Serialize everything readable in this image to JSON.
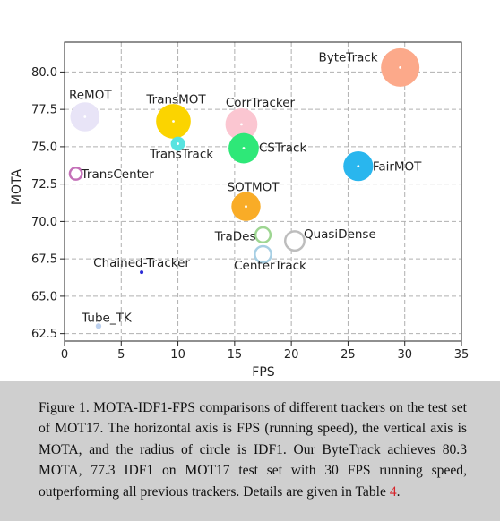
{
  "chart_data": {
    "type": "scatter",
    "xlabel": "FPS",
    "ylabel": "MOTA",
    "xlim": [
      0,
      35
    ],
    "ylim": [
      62,
      82
    ],
    "xticks": [
      0,
      5,
      10,
      15,
      20,
      25,
      30,
      35
    ],
    "yticks": [
      62.5,
      65.0,
      67.5,
      70.0,
      72.5,
      75.0,
      77.5,
      80.0
    ],
    "ytick_labels": [
      "62.5",
      "65.0",
      "67.5",
      "70.0",
      "72.5",
      "75.0",
      "77.5",
      "80.0"
    ],
    "grid": true,
    "size_encoding": "IDF1",
    "points": [
      {
        "label": "ByteTrack",
        "fps": 29.6,
        "mota": 80.3,
        "idf1": 77.3,
        "color": "#fca98a",
        "hollow": false
      },
      {
        "label": "ReMOT",
        "fps": 1.8,
        "mota": 77.0,
        "idf1": 72.0,
        "color": "#e8e4f7",
        "hollow": false
      },
      {
        "label": "TransMOT",
        "fps": 9.6,
        "mota": 76.7,
        "idf1": 75.1,
        "color": "#fbd400",
        "hollow": false
      },
      {
        "label": "CorrTracker",
        "fps": 15.6,
        "mota": 76.5,
        "idf1": 73.6,
        "color": "#fbc6d1",
        "hollow": false
      },
      {
        "label": "TransTrack",
        "fps": 10.0,
        "mota": 75.2,
        "idf1": 63.5,
        "color": "#57e3e0",
        "hollow": false
      },
      {
        "label": "CSTrack",
        "fps": 15.8,
        "mota": 74.9,
        "idf1": 72.6,
        "color": "#2ee878",
        "hollow": false
      },
      {
        "label": "TransCenter",
        "fps": 1.0,
        "mota": 73.2,
        "idf1": 62.2,
        "color": "#c471b8",
        "hollow": true
      },
      {
        "label": "FairMOT",
        "fps": 25.9,
        "mota": 73.7,
        "idf1": 72.3,
        "color": "#29b6ee",
        "hollow": false
      },
      {
        "label": "SOTMOT",
        "fps": 16.0,
        "mota": 71.0,
        "idf1": 71.9,
        "color": "#f9ac27",
        "hollow": false
      },
      {
        "label": "TraDes",
        "fps": 17.5,
        "mota": 69.1,
        "idf1": 63.9,
        "color": "#9ed692",
        "hollow": true
      },
      {
        "label": "QuasiDense",
        "fps": 20.3,
        "mota": 68.7,
        "idf1": 66.3,
        "color": "#bdbdbd",
        "hollow": true
      },
      {
        "label": "CenterTrack",
        "fps": 17.5,
        "mota": 67.8,
        "idf1": 64.7,
        "color": "#a7cfe4",
        "hollow": true
      },
      {
        "label": "Chained-Tracker",
        "fps": 6.8,
        "mota": 66.6,
        "idf1": 57.4,
        "color": "#2a2ad6",
        "hollow": false
      },
      {
        "label": "Tube_TK",
        "fps": 3.0,
        "mota": 63.0,
        "idf1": 58.6,
        "color": "#bcd0ee",
        "hollow": false
      }
    ]
  },
  "caption": {
    "text_before_ref": "Figure 1. MOTA-IDF1-FPS comparisons of different trackers on the test set of MOT17. The horizontal axis is FPS (running speed), the vertical axis is MOTA, and the radius of circle is IDF1. Our ByteTrack achieves 80.3 MOTA, 77.3 IDF1 on MOT17 test set with 30 FPS running speed, outperforming all previous trackers. Details are given in Table ",
    "ref": "4",
    "text_after_ref": "."
  }
}
